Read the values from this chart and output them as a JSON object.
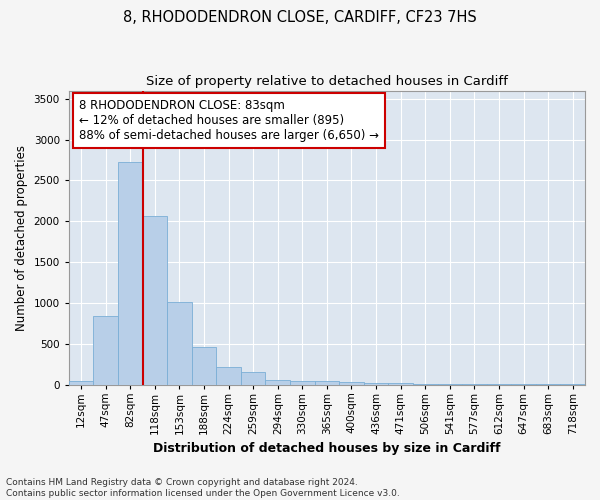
{
  "title1": "8, RHODODENDRON CLOSE, CARDIFF, CF23 7HS",
  "title2": "Size of property relative to detached houses in Cardiff",
  "xlabel": "Distribution of detached houses by size in Cardiff",
  "ylabel": "Number of detached properties",
  "categories": [
    "12sqm",
    "47sqm",
    "82sqm",
    "118sqm",
    "153sqm",
    "188sqm",
    "224sqm",
    "259sqm",
    "294sqm",
    "330sqm",
    "365sqm",
    "400sqm",
    "436sqm",
    "471sqm",
    "506sqm",
    "541sqm",
    "577sqm",
    "612sqm",
    "647sqm",
    "683sqm",
    "718sqm"
  ],
  "values": [
    50,
    840,
    2730,
    2060,
    1010,
    460,
    220,
    155,
    60,
    45,
    40,
    30,
    20,
    15,
    10,
    8,
    6,
    5,
    4,
    3,
    2
  ],
  "bar_color": "#b8cfe8",
  "bar_edge_color": "#7aaed6",
  "vline_color": "#cc0000",
  "annotation_text": "8 RHODODENDRON CLOSE: 83sqm\n← 12% of detached houses are smaller (895)\n88% of semi-detached houses are larger (6,650) →",
  "annotation_box_facecolor": "#ffffff",
  "annotation_box_edgecolor": "#cc0000",
  "ylim": [
    0,
    3600
  ],
  "yticks": [
    0,
    500,
    1000,
    1500,
    2000,
    2500,
    3000,
    3500
  ],
  "footnote1": "Contains HM Land Registry data © Crown copyright and database right 2024.",
  "footnote2": "Contains public sector information licensed under the Open Government Licence v3.0.",
  "fig_facecolor": "#f5f5f5",
  "plot_bg_color": "#dde6f0",
  "grid_color": "#ffffff",
  "title1_fontsize": 10.5,
  "title2_fontsize": 9.5,
  "xlabel_fontsize": 9,
  "ylabel_fontsize": 8.5,
  "tick_fontsize": 7.5,
  "footnote_fontsize": 6.5,
  "annot_fontsize": 8.5
}
